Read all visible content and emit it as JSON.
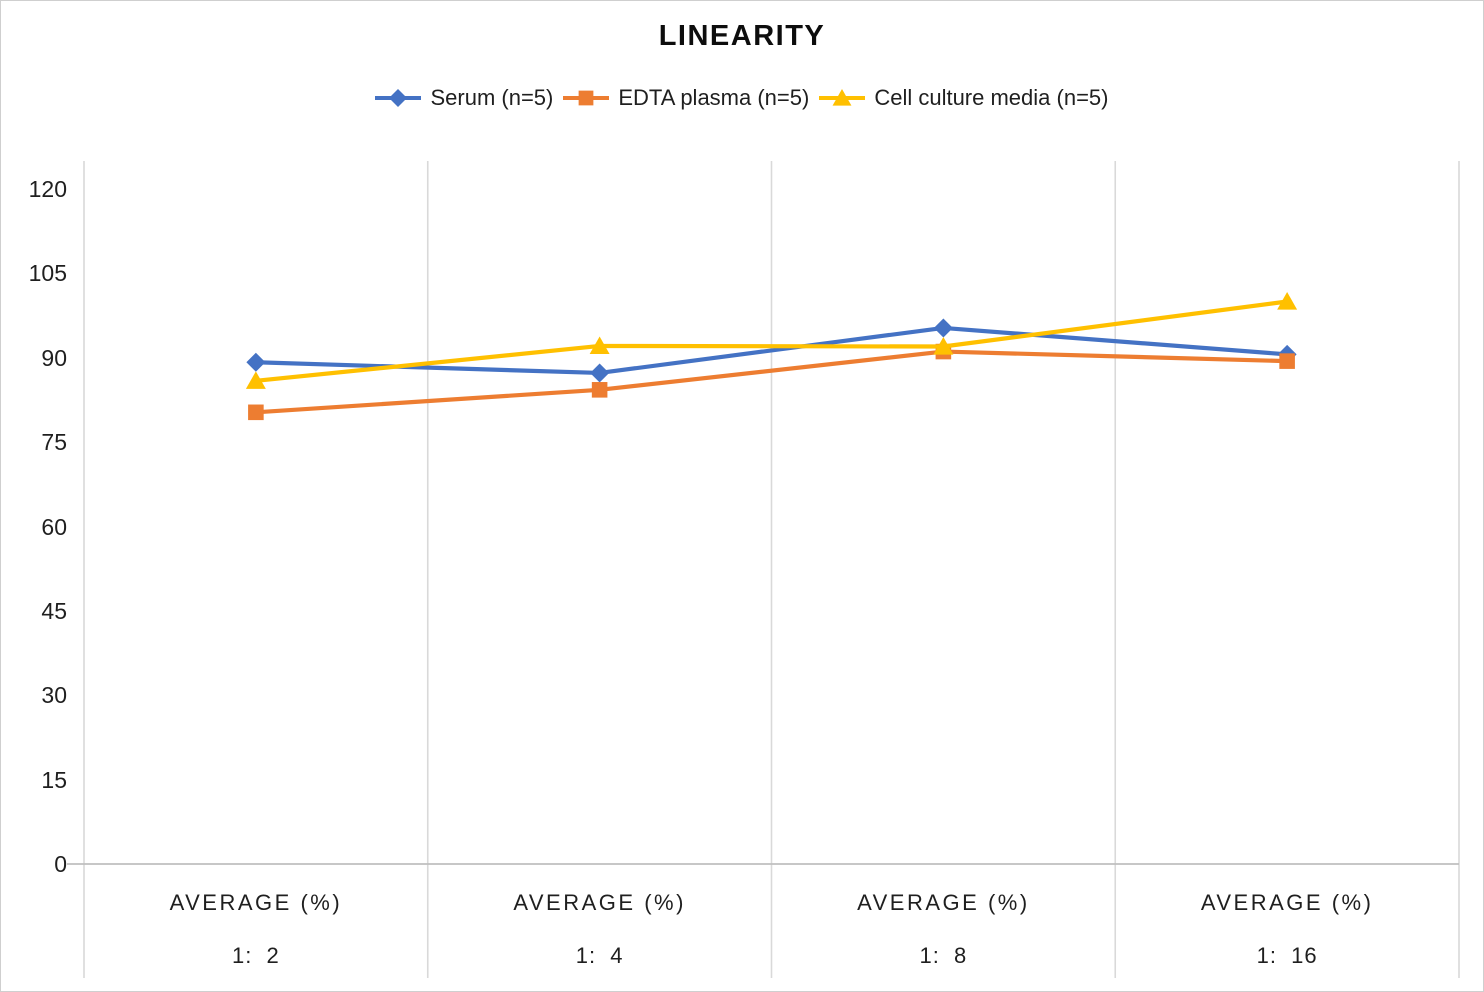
{
  "chart_data": {
    "type": "line",
    "title": "LINEARITY",
    "legend_position": "top",
    "grid": "vertical-only",
    "ylim": [
      0,
      120
    ],
    "yticks": [
      0,
      15,
      30,
      45,
      60,
      75,
      90,
      105,
      120
    ],
    "category_header": "AVERAGE (%)",
    "categories": [
      "1:  2",
      "1:  4",
      "1:  8",
      "1:  16"
    ],
    "series": [
      {
        "name": "Serum (n=5)",
        "color": "#4472C4",
        "marker": "diamond",
        "values": [
          89.2,
          87.3,
          95.3,
          90.6
        ]
      },
      {
        "name": "EDTA plasma (n=5)",
        "color": "#ED7D31",
        "marker": "square",
        "values": [
          80.3,
          84.3,
          91.1,
          89.4
        ]
      },
      {
        "name": "Cell culture media (n=5)",
        "color": "#FFC000",
        "marker": "triangle",
        "values": [
          85.9,
          92.1,
          92.0,
          100.0
        ]
      }
    ]
  },
  "colors": {
    "gridline": "#d9d9d9",
    "axis_line": "#bfbfbf",
    "border": "#cfcfcf",
    "background": "#ffffff",
    "text": "#1f1f1f"
  }
}
